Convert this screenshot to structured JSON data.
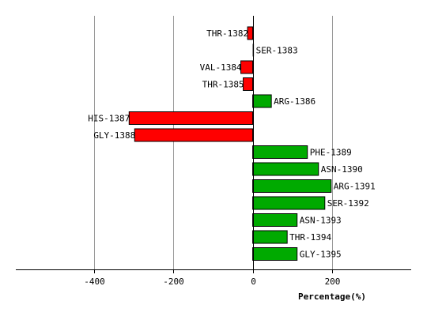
{
  "chart_data": {
    "type": "bar",
    "orientation": "horizontal",
    "categories": [
      "THR-1382",
      "SER-1383",
      "VAL-1384",
      "THR-1385",
      "ARG-1386",
      "HIS-1387",
      "GLY-1388",
      "PHE-1389",
      "ASN-1390",
      "ARG-1391",
      "SER-1392",
      "ASN-1393",
      "THR-1394",
      "GLY-1395"
    ],
    "values": [
      -13,
      0,
      -30,
      -24,
      47,
      -312,
      -298,
      138,
      166,
      198,
      182,
      112,
      87,
      112
    ],
    "xlabel": "Percentage(%)",
    "ylabel": "",
    "xlim": [
      -598,
      400
    ],
    "xticks": [
      -400,
      -200,
      0,
      200
    ],
    "grid": true,
    "colors": {
      "positive": "#00aa00",
      "negative": "#ff0000",
      "grid": "#999999",
      "axis": "#000000"
    }
  }
}
